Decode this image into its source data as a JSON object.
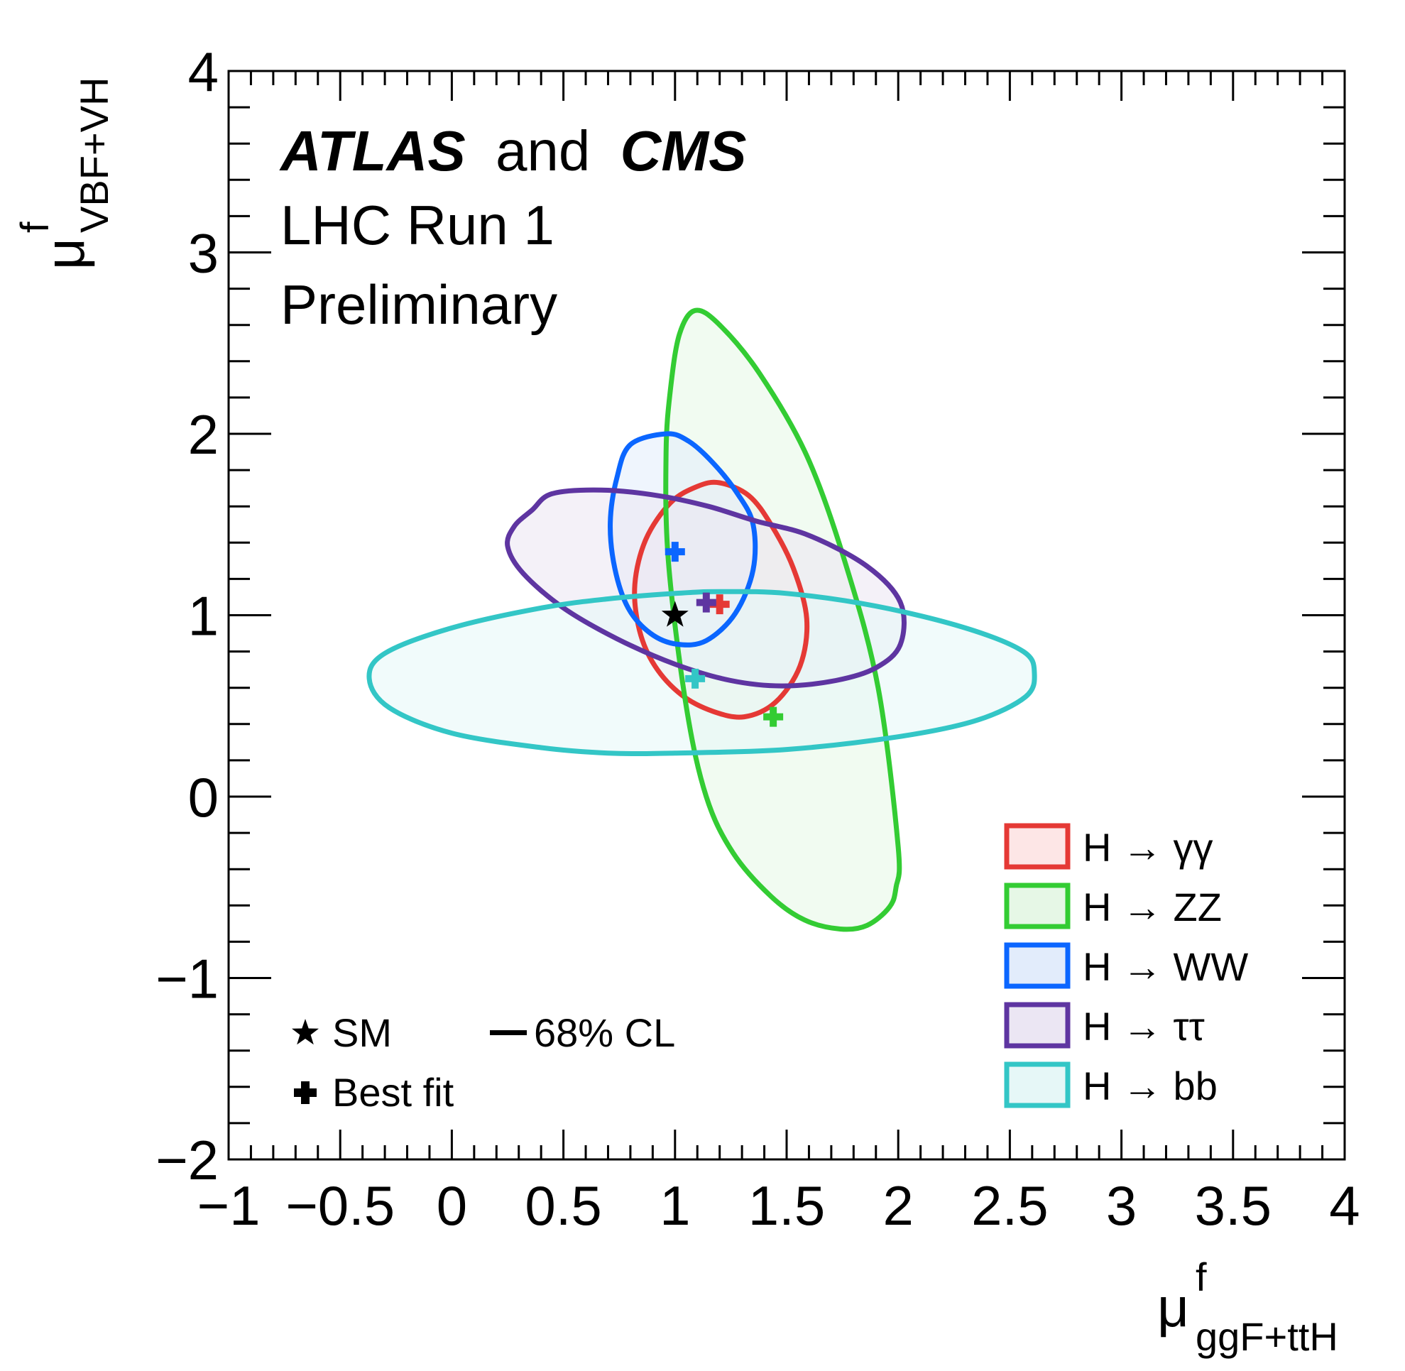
{
  "chart_data": {
    "type": "contour",
    "xlabel": {
      "base": "μ",
      "sup": "f",
      "sub": "ggF+ttH"
    },
    "ylabel": {
      "base": "μ",
      "sup": "f",
      "sub": "VBF+VH"
    },
    "xlim": [
      -1,
      4
    ],
    "ylim": [
      -2,
      4
    ],
    "xticks": [
      -1,
      -0.5,
      0,
      0.5,
      1,
      1.5,
      2,
      2.5,
      3,
      3.5,
      4
    ],
    "xtick_labels": [
      "−1",
      "−0.5",
      "0",
      "0.5",
      "1",
      "1.5",
      "2",
      "2.5",
      "3",
      "3.5",
      "4"
    ],
    "yticks": [
      -2,
      -1,
      0,
      1,
      2,
      3,
      4
    ],
    "ytick_labels": [
      "−2",
      "−1",
      "0",
      "1",
      "2",
      "3",
      "4"
    ],
    "x_minor_step": 0.1,
    "y_minor_step": 0.2,
    "annotations": {
      "atlas": "ATLAS",
      "and": "and",
      "cms": "CMS",
      "line2": "LHC Run 1",
      "line3": "Preliminary"
    },
    "sm_point": {
      "x": 1,
      "y": 1
    },
    "key": {
      "sm_label": "SM",
      "bestfit_label": "Best fit",
      "cl_label": "68% CL"
    },
    "legend_position": "bottom-right",
    "series": [
      {
        "name": "H → γγ",
        "stroke": "#e53935",
        "fill": "#fde6e6",
        "best_fit": {
          "x": 1.2,
          "y": 1.06
        },
        "contour": [
          [
            1.2,
            1.73
          ],
          [
            1.1,
            1.71
          ],
          [
            0.98,
            1.62
          ],
          [
            0.87,
            1.42
          ],
          [
            0.82,
            1.17
          ],
          [
            0.84,
            0.92
          ],
          [
            0.91,
            0.72
          ],
          [
            1.03,
            0.56
          ],
          [
            1.17,
            0.47
          ],
          [
            1.31,
            0.44
          ],
          [
            1.45,
            0.52
          ],
          [
            1.56,
            0.72
          ],
          [
            1.59,
            0.98
          ],
          [
            1.53,
            1.26
          ],
          [
            1.43,
            1.5
          ],
          [
            1.33,
            1.66
          ]
        ]
      },
      {
        "name": "H → ZZ",
        "stroke": "#33cc33",
        "fill": "#e6f7e6",
        "best_fit": {
          "x": 1.44,
          "y": 0.44
        },
        "contour": [
          [
            1.09,
            2.68
          ],
          [
            1.2,
            2.6
          ],
          [
            1.38,
            2.33
          ],
          [
            1.59,
            1.88
          ],
          [
            1.76,
            1.3
          ],
          [
            1.91,
            0.6
          ],
          [
            2.0,
            -0.28
          ],
          [
            1.99,
            -0.5
          ],
          [
            1.96,
            -0.61
          ],
          [
            1.86,
            -0.71
          ],
          [
            1.74,
            -0.73
          ],
          [
            1.58,
            -0.68
          ],
          [
            1.43,
            -0.55
          ],
          [
            1.26,
            -0.31
          ],
          [
            1.14,
            0.0
          ],
          [
            1.05,
            0.5
          ],
          [
            0.97,
            1.3
          ],
          [
            0.96,
            1.9
          ],
          [
            0.98,
            2.25
          ],
          [
            1.02,
            2.55
          ]
        ]
      },
      {
        "name": "H → WW",
        "stroke": "#0b66ff",
        "fill": "#e2ecfb",
        "best_fit": {
          "x": 1.0,
          "y": 1.35
        },
        "contour": [
          [
            0.96,
            2.0
          ],
          [
            0.8,
            1.94
          ],
          [
            0.74,
            1.76
          ],
          [
            0.71,
            1.51
          ],
          [
            0.73,
            1.26
          ],
          [
            0.79,
            1.04
          ],
          [
            0.89,
            0.9
          ],
          [
            1.01,
            0.84
          ],
          [
            1.14,
            0.86
          ],
          [
            1.27,
            1.01
          ],
          [
            1.35,
            1.25
          ],
          [
            1.35,
            1.5
          ],
          [
            1.28,
            1.67
          ],
          [
            1.17,
            1.84
          ],
          [
            1.06,
            1.96
          ]
        ]
      },
      {
        "name": "H → ττ",
        "stroke": "#5e35a1",
        "fill": "#ebe6f3",
        "best_fit": {
          "x": 1.14,
          "y": 1.07
        },
        "contour": [
          [
            0.45,
            1.67
          ],
          [
            0.67,
            1.69
          ],
          [
            0.92,
            1.66
          ],
          [
            1.15,
            1.6
          ],
          [
            1.36,
            1.52
          ],
          [
            1.6,
            1.44
          ],
          [
            1.86,
            1.27
          ],
          [
            2.01,
            1.07
          ],
          [
            2.01,
            0.84
          ],
          [
            1.9,
            0.71
          ],
          [
            1.72,
            0.64
          ],
          [
            1.48,
            0.61
          ],
          [
            1.25,
            0.64
          ],
          [
            1.0,
            0.73
          ],
          [
            0.74,
            0.87
          ],
          [
            0.5,
            1.04
          ],
          [
            0.32,
            1.23
          ],
          [
            0.25,
            1.38
          ],
          [
            0.28,
            1.49
          ],
          [
            0.36,
            1.58
          ]
        ]
      },
      {
        "name": "H → bb",
        "stroke": "#33c6c6",
        "fill": "#e6f7f7",
        "best_fit": {
          "x": 1.09,
          "y": 0.65
        },
        "contour": [
          [
            1.0,
            1.12
          ],
          [
            1.2,
            1.13
          ],
          [
            1.5,
            1.12
          ],
          [
            1.9,
            1.05
          ],
          [
            2.3,
            0.93
          ],
          [
            2.56,
            0.8
          ],
          [
            2.61,
            0.68
          ],
          [
            2.57,
            0.55
          ],
          [
            2.35,
            0.42
          ],
          [
            2.0,
            0.33
          ],
          [
            1.5,
            0.26
          ],
          [
            1.0,
            0.24
          ],
          [
            0.7,
            0.24
          ],
          [
            0.4,
            0.27
          ],
          [
            0.0,
            0.35
          ],
          [
            -0.28,
            0.49
          ],
          [
            -0.37,
            0.65
          ],
          [
            -0.3,
            0.79
          ],
          [
            0.0,
            0.93
          ],
          [
            0.4,
            1.04
          ],
          [
            0.7,
            1.09
          ]
        ]
      }
    ]
  }
}
